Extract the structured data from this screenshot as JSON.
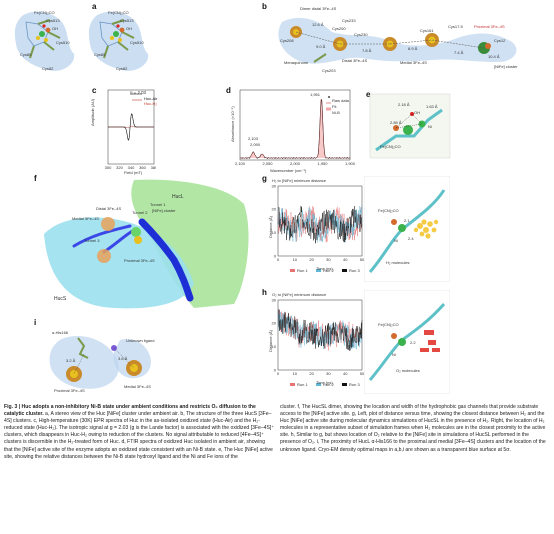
{
  "panels": {
    "a": {
      "label": "a",
      "structures": [
        {
          "fe_label": "Fe(CN)₂CO",
          "oh_label": "OH",
          "cys1": "Cys513",
          "cys2": "Cys510",
          "cys3": "Cys80",
          "cys4": "Cys82"
        },
        {
          "fe_label": "Fe(CN)₂CO",
          "oh_label": "OH",
          "cys1": "Cys513",
          "cys2": "Cys510",
          "cys3": "Cys80",
          "cys4": "Cys82"
        }
      ]
    },
    "b": {
      "label": "b",
      "labels": [
        "Dimer distal 3Fe–4S",
        "Cys233",
        "Cys200",
        "Cys230",
        "Cys208",
        "Cys200",
        "Menaquinone",
        "Cys203",
        "Distal 3Fe–4S",
        "Medial 3Fe–4S",
        "Cys161",
        "Cys17.5",
        "Proximal 3Fe–4S",
        "Cys12",
        "[NiFe] cluster"
      ],
      "distances": [
        "12.6 Å",
        "9.0 Å",
        "7.8 Å",
        "8.9 Å",
        "7.4 Å",
        "10.4 Å"
      ]
    },
    "c": {
      "label": "c",
      "g_label": "g = 2.03",
      "legend": [
        "Huc-Air",
        "Huc-H₂"
      ],
      "ylabel": "Amplitude (AU)",
      "xlabel": "Field (mT)",
      "xticks": [
        "300",
        "320",
        "340",
        "360",
        "380"
      ]
    },
    "d": {
      "label": "d",
      "peak_main": "1,951",
      "peak_a": "2,103",
      "peak_b": "2,090",
      "legend": [
        "Raw data",
        "Fit",
        "Ni-B"
      ],
      "ylabel": "Absorbance (×10⁻⁵)",
      "xlabel": "Wavenumber (cm⁻¹)",
      "xticks": [
        "2,100",
        "2,050",
        "2,000",
        "1,950",
        "1,900"
      ]
    },
    "e": {
      "label": "e",
      "dist1": "2.18 Å",
      "dist2": "1.63 Å",
      "dist3": "2.89 Å",
      "oh": "OH",
      "ni": "Ni",
      "fe": "Fe(CN)₂CO"
    },
    "f": {
      "label": "f",
      "hucl": "HucL",
      "hucs": "HucS",
      "tunnel1": "Tunnel 1",
      "tunnel2": "Tunnel 2",
      "tunnel3": "Tunnel 3",
      "distal": "Distal 3Fe–4S",
      "medial": "Medial 3Fe–4S",
      "proximal": "Proximal 3Fe–4S",
      "nife": "[NiFe] cluster"
    },
    "g": {
      "label": "g",
      "title": "H₂ to [NiFe] minimum distance",
      "ylabel": "Distance (Å)",
      "xlabel": "Time (ns)",
      "xticks": [
        "0",
        "10",
        "20",
        "30",
        "40",
        "50"
      ],
      "yticks": [
        "0",
        "10",
        "20",
        "30"
      ],
      "legend": [
        "Run 1",
        "Run 2",
        "Run 3"
      ],
      "side_labels": {
        "fe": "Fe(CN)₂CO",
        "d1": "2.1",
        "d2": "2.4",
        "ni": "Ni",
        "mol": "H₂ molecules"
      }
    },
    "h": {
      "label": "h",
      "title": "O₂ to [NiFe] minimum distance",
      "ylabel": "Distance (Å)",
      "xlabel": "Time (ns)",
      "xticks": [
        "0",
        "10",
        "20",
        "30",
        "40",
        "50"
      ],
      "yticks": [
        "0",
        "10",
        "20",
        "30"
      ],
      "legend": [
        "Run 1",
        "Run 2",
        "Run 3"
      ],
      "side_labels": {
        "fe": "Fe(CN)₂CO",
        "d1": "2.2",
        "ni": "Ni",
        "mol": "O₂ molecules"
      }
    },
    "i": {
      "label": "i",
      "his": "α-His166",
      "d1": "3.2 Å",
      "d2": "3.8 Å",
      "unknown": "Unknown ligand",
      "proximal": "Proximal 3Fe–4S",
      "medial": "Medial 3Fe–4S"
    }
  },
  "caption": {
    "left_bold": "Fig. 3 | Huc adopts a non-inhibitory Ni-B state under ambient conditions and restricts O₂ diffusion to the catalytic cluster.",
    "left_text": " a, A stereo view of the Huc [NiFe] cluster under ambient air. b, The structure of the three HucS [3Fe–4S] clusters. c, High-temperature (30K) EPR spectra of Huc in the as-isolated oxidized state (Huc-Air) and the H₂-reduced state (Huc-H₂). The isotropic signal at g = 2.03 (g is the Lande factor) is associated with the oxidized [3Fe–4S]⁺ clusters, which disappears in Huc-H₂ owing to reduction of the clusters. No signal attributable to reduced [4Fe–4S]⁺ clusters is discernible in the H₂-treated form of Huc. d, FTIR spectra of oxidized Huc isolated in ambient air, showing that the [NiFe] active site of the enzyme adopts an oxidized state consistent with an Ni-B state. e, The Huc [NiFe] active site, showing the relative distances between the Ni-B state hydroxyl ligand and the Ni and Fe ions of the",
    "right_text": "cluster. f, The HucSL dimer, showing the location and width of the hydrophobic gas channels that provide substrate access to the [NiFe] active site. g, Left, plot of distance versus time, showing the closest distance between H₂ and the Huc [NiFe] active site during molecular dynamics simulations of HucSL in the presence of H₂. Right, the location of H₂ molecules in a representative subset of simulation frames when H₂ molecules are in the closest proximity to the active site. h, Similar to g, but shows location of O₂ relative to the [NiFe] site in simulations of HucSL performed in the presence of O₂. i, The proximity of HucL α-His166 to the proximal and medial [3Fe–4S] clusters and the location of the unknown ligand. Cryo-EM density optimal maps in a,b,i are shown as a transparent blue surface at 5σ."
  }
}
